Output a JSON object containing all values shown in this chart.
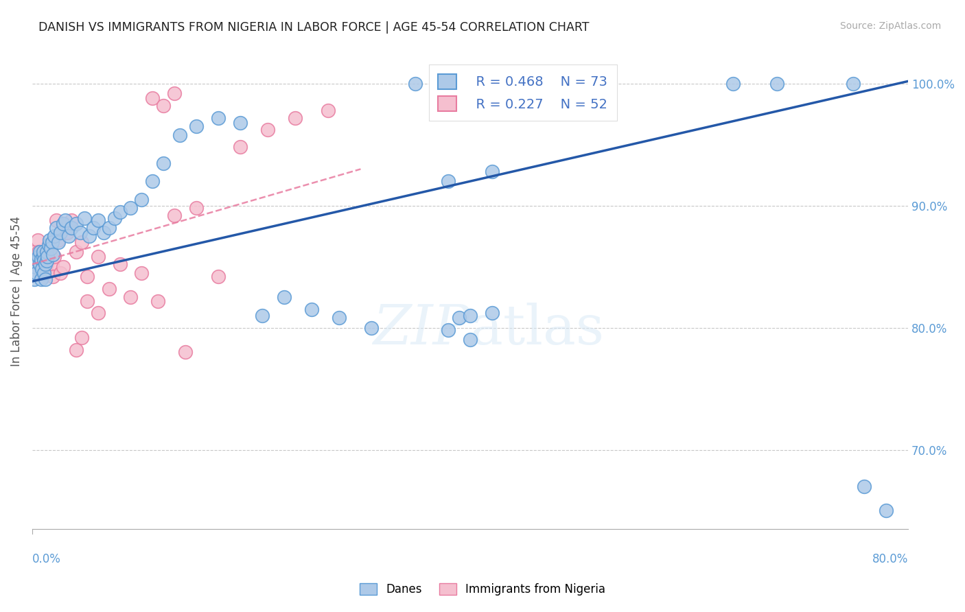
{
  "title": "DANISH VS IMMIGRANTS FROM NIGERIA IN LABOR FORCE | AGE 45-54 CORRELATION CHART",
  "source": "Source: ZipAtlas.com",
  "ylabel": "In Labor Force | Age 45-54",
  "xmin": 0.0,
  "xmax": 0.8,
  "ymin": 0.635,
  "ymax": 1.025,
  "yticks": [
    0.7,
    0.8,
    0.9,
    1.0
  ],
  "ytick_labels": [
    "70.0%",
    "80.0%",
    "90.0%",
    "100.0%"
  ],
  "danes_color": "#adc9e8",
  "danes_edge_color": "#5b9bd5",
  "nigeria_color": "#f5bfcf",
  "nigeria_edge_color": "#e87ca0",
  "trendline_danes_color": "#2458a8",
  "trendline_nigeria_color": "#e87ca0",
  "watermark": "ZIPatlas",
  "danes_x": [
    0.002,
    0.003,
    0.004,
    0.005,
    0.006,
    0.007,
    0.007,
    0.008,
    0.008,
    0.009,
    0.01,
    0.01,
    0.011,
    0.011,
    0.012,
    0.012,
    0.013,
    0.013,
    0.014,
    0.015,
    0.016,
    0.017,
    0.018,
    0.019,
    0.02,
    0.022,
    0.024,
    0.026,
    0.028,
    0.03,
    0.033,
    0.036,
    0.04,
    0.044,
    0.048,
    0.052,
    0.056,
    0.06,
    0.065,
    0.07,
    0.075,
    0.08,
    0.09,
    0.1,
    0.11,
    0.12,
    0.135,
    0.15,
    0.17,
    0.19,
    0.21,
    0.23,
    0.255,
    0.28,
    0.31,
    0.35,
    0.38,
    0.4,
    0.43,
    0.46,
    0.39,
    0.42,
    0.38,
    0.42,
    0.38,
    0.4,
    0.52,
    0.64,
    0.68,
    0.75,
    0.76,
    0.78,
    0.4
  ],
  "danes_y": [
    0.84,
    0.85,
    0.845,
    0.855,
    0.858,
    0.852,
    0.862,
    0.84,
    0.856,
    0.848,
    0.858,
    0.862,
    0.855,
    0.845,
    0.852,
    0.84,
    0.855,
    0.862,
    0.858,
    0.868,
    0.872,
    0.865,
    0.87,
    0.86,
    0.875,
    0.882,
    0.87,
    0.878,
    0.885,
    0.888,
    0.875,
    0.882,
    0.885,
    0.878,
    0.89,
    0.875,
    0.882,
    0.888,
    0.878,
    0.882,
    0.89,
    0.895,
    0.898,
    0.905,
    0.92,
    0.935,
    0.958,
    0.965,
    0.972,
    0.968,
    0.81,
    0.825,
    0.815,
    0.808,
    0.8,
    1.0,
    1.0,
    1.0,
    1.0,
    1.0,
    0.808,
    0.812,
    0.92,
    0.928,
    0.798,
    0.81,
    0.998,
    1.0,
    1.0,
    1.0,
    0.67,
    0.65,
    0.79
  ],
  "nigeria_x": [
    0.002,
    0.003,
    0.004,
    0.005,
    0.006,
    0.007,
    0.008,
    0.009,
    0.009,
    0.01,
    0.01,
    0.011,
    0.012,
    0.013,
    0.013,
    0.014,
    0.015,
    0.016,
    0.017,
    0.018,
    0.019,
    0.02,
    0.022,
    0.024,
    0.026,
    0.028,
    0.032,
    0.036,
    0.04,
    0.045,
    0.05,
    0.06,
    0.07,
    0.08,
    0.09,
    0.1,
    0.115,
    0.13,
    0.15,
    0.17,
    0.19,
    0.215,
    0.24,
    0.27,
    0.11,
    0.12,
    0.13,
    0.14,
    0.04,
    0.045,
    0.05,
    0.06
  ],
  "nigeria_y": [
    0.862,
    0.852,
    0.858,
    0.872,
    0.862,
    0.845,
    0.855,
    0.858,
    0.85,
    0.862,
    0.852,
    0.842,
    0.862,
    0.855,
    0.852,
    0.845,
    0.858,
    0.862,
    0.858,
    0.852,
    0.842,
    0.858,
    0.888,
    0.872,
    0.845,
    0.85,
    0.878,
    0.888,
    0.862,
    0.87,
    0.842,
    0.858,
    0.832,
    0.852,
    0.825,
    0.845,
    0.822,
    0.892,
    0.898,
    0.842,
    0.948,
    0.962,
    0.972,
    0.978,
    0.988,
    0.982,
    0.992,
    0.78,
    0.782,
    0.792,
    0.822,
    0.812
  ],
  "trendline_danes_x0": 0.0,
  "trendline_danes_x1": 0.8,
  "trendline_danes_y0": 0.838,
  "trendline_danes_y1": 1.002,
  "trendline_nigeria_x0": 0.0,
  "trendline_nigeria_x1": 0.3,
  "trendline_nigeria_y0": 0.852,
  "trendline_nigeria_y1": 0.93
}
